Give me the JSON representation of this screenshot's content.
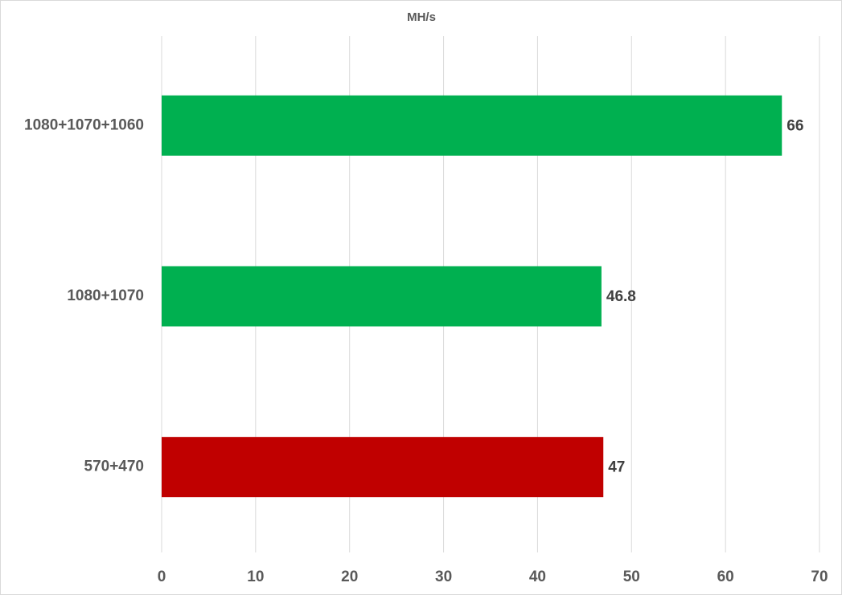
{
  "chart_data": {
    "type": "bar",
    "orientation": "horizontal",
    "title": "MH/s",
    "categories": [
      "1080+1070+1060",
      "1080+1070",
      "570+470"
    ],
    "values": [
      66,
      46.8,
      47
    ],
    "colors": [
      "#00b050",
      "#00b050",
      "#c00000"
    ],
    "xlim": [
      0,
      70
    ],
    "xticks": [
      0,
      10,
      20,
      30,
      40,
      50,
      60,
      70
    ],
    "grid": true
  }
}
